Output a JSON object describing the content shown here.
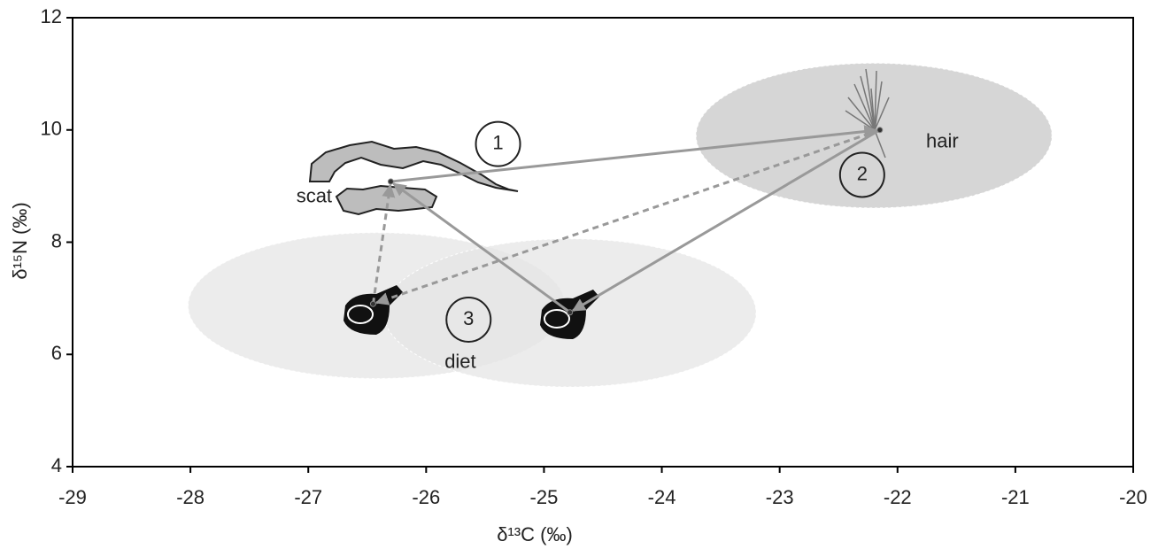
{
  "chart_data": {
    "type": "scatter",
    "xlabel": "δ¹³C (‰)",
    "ylabel": "δ¹⁵N (‰)",
    "xlim": [
      -29,
      -20
    ],
    "ylim": [
      4,
      12
    ],
    "xticks": [
      -29,
      -28,
      -27,
      -26,
      -25,
      -24,
      -23,
      -22,
      -21,
      -20
    ],
    "yticks": [
      4,
      6,
      8,
      10,
      12
    ],
    "x": [
      -26.3,
      -22.15,
      -26.45,
      -24.78
    ],
    "y": [
      9.08,
      10.0,
      6.9,
      6.75
    ],
    "point_color": "#333333",
    "ellipses": [
      {
        "cx": -22.2,
        "cy": 9.9,
        "rx": 1.51,
        "ry": 1.29,
        "color": "#c8c8c8"
      },
      {
        "cx": -26.42,
        "cy": 6.87,
        "rx": 1.6,
        "ry": 1.3,
        "color": "#e6e6e6"
      },
      {
        "cx": -24.78,
        "cy": 6.74,
        "rx": 1.58,
        "ry": 1.32,
        "color": "#e6e6e6"
      }
    ],
    "arrows": [
      {
        "from": 0,
        "to": 1,
        "dashed": false
      },
      {
        "from": 3,
        "to": 0,
        "dashed": false
      },
      {
        "from": 1,
        "to": 3,
        "dashed": false
      },
      {
        "from": 2,
        "to": 0,
        "dashed": true
      },
      {
        "from": 1,
        "to": 2,
        "dashed": true
      }
    ],
    "arrow_color": "#999999",
    "annotations": [
      {
        "text": "scat",
        "x": -26.95,
        "y": 8.8,
        "circled": false
      },
      {
        "text": "hair",
        "x": -21.62,
        "y": 9.78,
        "circled": false
      },
      {
        "text": "diet",
        "x": -25.71,
        "y": 5.85,
        "circled": false
      },
      {
        "text": "1",
        "x": -25.39,
        "y": 9.75,
        "circled": true
      },
      {
        "text": "2",
        "x": -22.3,
        "y": 9.2,
        "circled": true
      },
      {
        "text": "3",
        "x": -25.64,
        "y": 6.62,
        "circled": true
      }
    ]
  }
}
